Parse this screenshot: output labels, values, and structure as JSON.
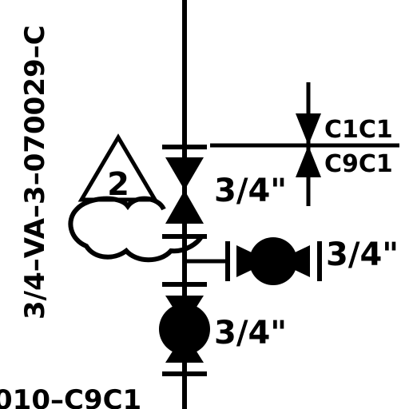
{
  "line_number": "3/4–VA–3–070029–C",
  "spec_top": "C1C1",
  "spec_bottom": "C9C1",
  "revision_mark": "2",
  "size_upper_valve": "3/4\"",
  "size_branch_valve": "3/4\"",
  "size_lower_valve": "3/4\"",
  "bottom_tag": "010–C9C1",
  "colors": {
    "line": "#000000",
    "background": "#ffffff"
  }
}
